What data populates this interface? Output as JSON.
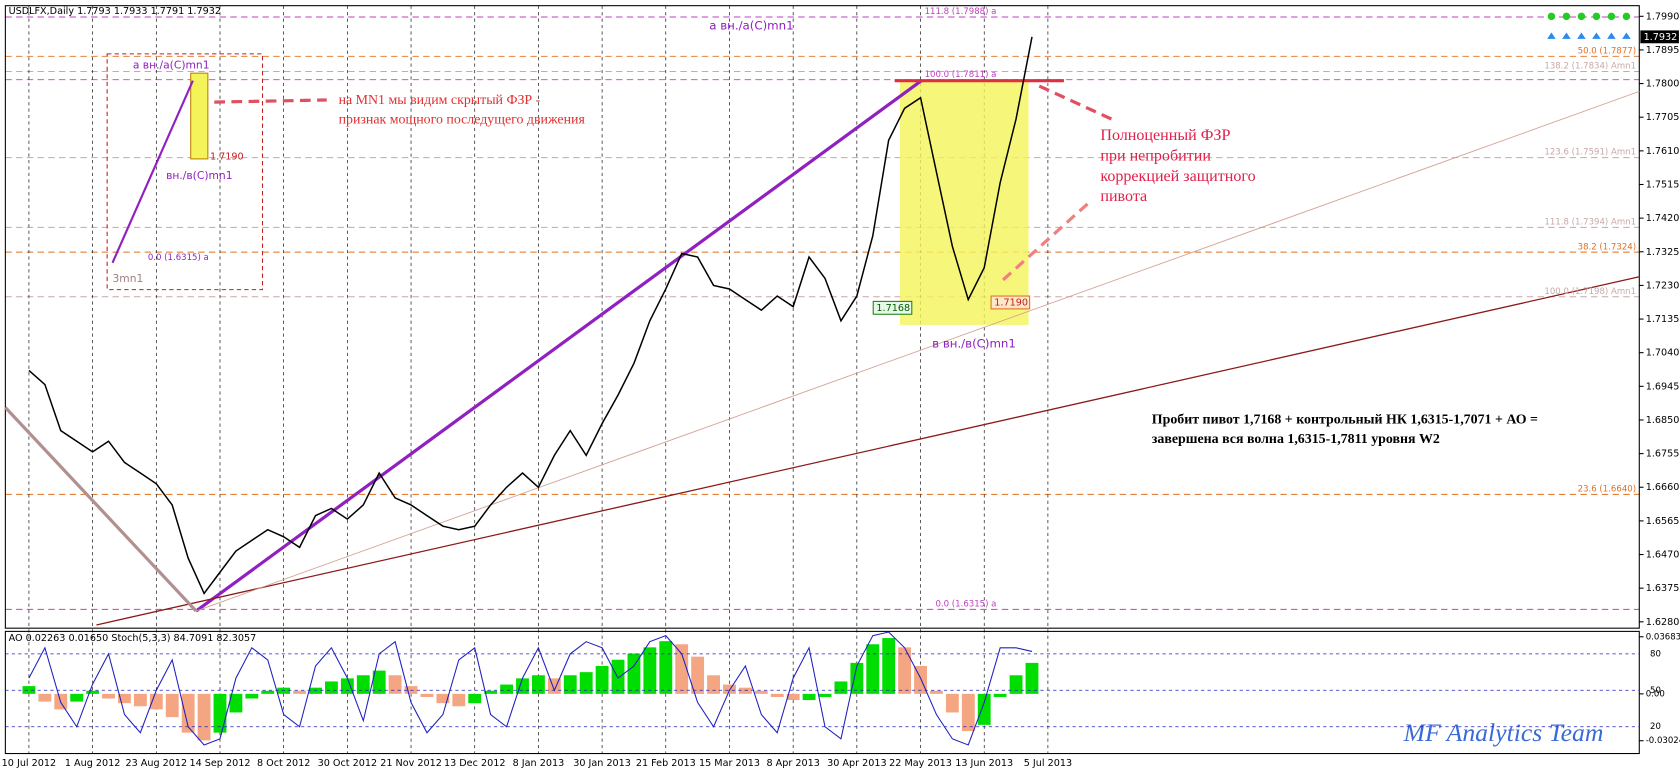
{
  "chart_data": [
    {
      "type": "line",
      "title": "USDLFX,Daily 1.7793 1.7933 1.7791 1.7932",
      "categories": [
        "10 Jul 2012",
        null,
        null,
        null,
        "1 Aug 2012",
        null,
        null,
        null,
        "23 Aug 2012",
        null,
        null,
        null,
        "14 Sep 2012",
        null,
        null,
        null,
        "8 Oct 2012",
        null,
        null,
        null,
        "30 Oct 2012",
        null,
        null,
        null,
        "21 Nov 2012",
        null,
        null,
        null,
        "13 Dec 2012",
        null,
        null,
        null,
        "8 Jan 2013",
        null,
        null,
        null,
        "30 Jan 2013",
        null,
        null,
        null,
        "21 Feb 2013",
        null,
        null,
        null,
        "15 Mar 2013",
        null,
        null,
        null,
        "8 Apr 2013",
        null,
        null,
        null,
        "30 Apr 2013",
        null,
        null,
        null,
        "22 May 2013",
        null,
        null,
        null,
        "13 Jun 2013",
        null,
        null,
        null,
        "5 Jul 2013"
      ],
      "values": [
        1.699,
        1.695,
        1.682,
        1.679,
        1.676,
        1.679,
        1.673,
        1.67,
        1.667,
        1.661,
        1.646,
        1.636,
        1.642,
        1.648,
        1.651,
        1.654,
        1.652,
        1.649,
        1.658,
        1.66,
        1.657,
        1.661,
        1.67,
        1.663,
        1.661,
        1.658,
        1.655,
        1.654,
        1.655,
        1.661,
        1.666,
        1.67,
        1.666,
        1.675,
        1.682,
        1.675,
        1.684,
        1.692,
        1.701,
        1.713,
        1.722,
        1.732,
        1.731,
        1.723,
        1.722,
        1.719,
        1.716,
        1.72,
        1.717,
        1.731,
        1.725,
        1.713,
        1.72,
        1.737,
        1.764,
        1.773,
        1.776,
        1.755,
        1.734,
        1.719,
        1.728,
        1.752,
        1.77,
        1.7932,
        null
      ],
      "color": "#000000",
      "ylim": [
        1.6262,
        1.802
      ],
      "yticks": [
        {
          "value": 1.799,
          "label": "1.7990"
        },
        1.7895,
        {
          "value": 1.78,
          "label": "1.7800"
        },
        1.7705,
        {
          "value": 1.761,
          "label": "1.7610"
        },
        1.7515,
        {
          "value": 1.742,
          "label": "1.7420"
        },
        1.7325,
        {
          "value": 1.723,
          "label": "1.7230"
        },
        1.7135,
        {
          "value": 1.704,
          "label": "1.7040"
        },
        1.6945,
        {
          "value": 1.685,
          "label": "1.6850"
        },
        1.6755,
        {
          "value": 1.666,
          "label": "1.6660"
        },
        1.6565,
        {
          "value": 1.647,
          "label": "1.6470"
        },
        1.6375,
        {
          "value": 1.628,
          "label": "1.6280"
        }
      ],
      "current_price": 1.7932,
      "grid": false,
      "levels": [
        {
          "value": 1.7988,
          "label": "111.8 (1.7988) a",
          "color": "#c040c0"
        },
        {
          "value": 1.7877,
          "label": "50.0 (1.7877)",
          "color": "#e07020"
        },
        {
          "value": 1.7834,
          "label": "138.2 (1.7834) Amn1",
          "color": "#c8a8a8"
        },
        {
          "value": 1.7811,
          "label": "100.0 (1.7811) a",
          "color": "#c040c0"
        },
        {
          "value": 1.7591,
          "label": "123.6 (1.7591) Amn1",
          "color": "#c8a8a8"
        },
        {
          "value": 1.7394,
          "label": "111.8 (1.7394) Amn1",
          "color": "#c8a8a8"
        },
        {
          "value": 1.7324,
          "label": "38.2 (1.7324)",
          "color": "#e07020"
        },
        {
          "value": 1.7198,
          "label": "100.0 (1.7198) Amn1",
          "color": "#c8a8a8"
        },
        {
          "value": 1.664,
          "label": "23.6 (1.6640)",
          "color": "#e07020"
        },
        {
          "value": 1.6315,
          "label": "0.0 (1.6315) a",
          "color": "#c040c0"
        }
      ]
    },
    {
      "type": "bar",
      "title": "AO 0.02263 0.01650 Stoch(5,3,3) 84.7091 82.3057",
      "values": [
        0.005,
        -0.005,
        -0.01,
        -0.005,
        0.002,
        -0.003,
        -0.006,
        -0.008,
        -0.01,
        -0.015,
        -0.025,
        -0.03,
        -0.025,
        -0.012,
        -0.003,
        0.002,
        0.004,
        0.002,
        0.004,
        0.008,
        0.01,
        0.012,
        0.015,
        0.012,
        0.005,
        -0.002,
        -0.006,
        -0.008,
        -0.006,
        0.002,
        0.006,
        0.01,
        0.012,
        0.01,
        0.012,
        0.014,
        0.018,
        0.022,
        0.026,
        0.03,
        0.034,
        0.032,
        0.024,
        0.012,
        0.006,
        0.004,
        0.002,
        -0.002,
        -0.004,
        -0.004,
        -0.002,
        0.008,
        0.02,
        0.032,
        0.036,
        0.03,
        0.018,
        0.002,
        -0.012,
        -0.024,
        -0.02,
        -0.002,
        0.012,
        0.02,
        null
      ],
      "up_color": "#00dd00",
      "down_color": "#f4a582",
      "ylim": [
        -0.0385,
        0.0403
      ],
      "yticks": [
        0.03683,
        {
          "value": 0,
          "label": "0.00"
        },
        -0.03024
      ],
      "series": [
        {
          "color": "#2020c0",
          "axis": "y2",
          "values": [
            60,
            85,
            40,
            20,
            55,
            80,
            30,
            15,
            50,
            75,
            20,
            5,
            10,
            60,
            85,
            75,
            30,
            20,
            70,
            85,
            60,
            25,
            80,
            90,
            40,
            15,
            30,
            75,
            85,
            30,
            20,
            60,
            85,
            50,
            80,
            90,
            85,
            60,
            70,
            90,
            95,
            80,
            40,
            20,
            50,
            70,
            30,
            15,
            60,
            85,
            20,
            10,
            70,
            95,
            98,
            85,
            60,
            30,
            10,
            5,
            40,
            85,
            85,
            82,
            null
          ]
        }
      ],
      "y2lim": [
        -2.1,
        98.5
      ],
      "y2ticks": [
        80,
        50,
        20
      ]
    }
  ],
  "annotations": {
    "wave_a": "а вн./а(С)mn1",
    "wave_b": "в вн./в(С)mn1",
    "pivot_1": "1.7168",
    "pivot_2": "1.7190",
    "inset_a": "а вн./а(С)mn1",
    "inset_pivot": "1.7190",
    "inset_b": "вн./в(С)mn1",
    "inset_zero": "0.0 (1.6315) a",
    "inset_start": "3mn1",
    "note_mn1": [
      "на MN1 мы видим скрытый ФЗР -",
      "признак мощного последущего движения"
    ],
    "note_full": [
      "Полноценный ФЗР",
      "при непробитии",
      "коррекцией защитного",
      "пивота"
    ],
    "note_w2": [
      "Пробит пивот 1,7168 + контрольный НК 1,6315-1,7071 + АО =",
      "завершена вся волна 1,6315-1,7811 уровня W2"
    ],
    "watermark": "MF Analytics Team"
  }
}
